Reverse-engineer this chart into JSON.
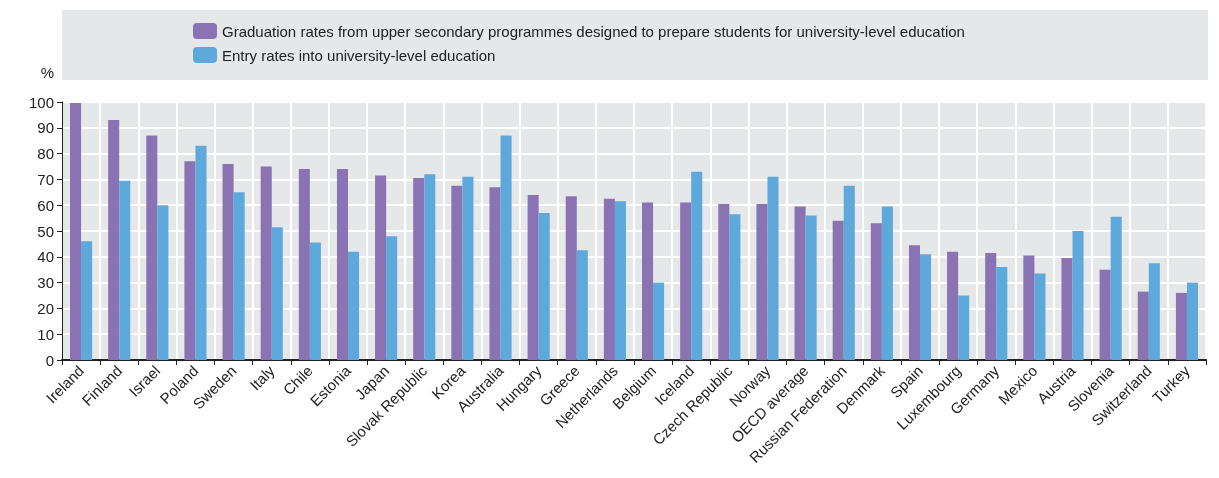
{
  "chart_data": {
    "type": "bar",
    "ylabel": "%",
    "categories": [
      "Ireland",
      "Finland",
      "Israel",
      "Poland",
      "Sweden",
      "Italy",
      "Chile",
      "Estonia",
      "Japan",
      "Slovak Republic",
      "Korea",
      "Australia",
      "Hungary",
      "Greece",
      "Netherlands",
      "Belgium",
      "Iceland",
      "Czech Republic",
      "Norway",
      "OECD average",
      "Russian Federation",
      "Denmark",
      "Spain",
      "Luxembourg",
      "Germany",
      "Mexico",
      "Austria",
      "Slovenia",
      "Switzerland",
      "Turkey"
    ],
    "series": [
      {
        "name": "Graduation rates from upper secondary programmes designed to prepare students for university-level education",
        "color": "#8973b3",
        "values": [
          99.6,
          93,
          87,
          77,
          76,
          75,
          74,
          74,
          71.5,
          70.5,
          67.5,
          67,
          64,
          63.5,
          62.5,
          61,
          61,
          60.5,
          60.5,
          59.5,
          54,
          53,
          44.5,
          42,
          41.5,
          40.5,
          39.5,
          35,
          26.5,
          26
        ]
      },
      {
        "name": "Entry rates into university-level education",
        "color": "#5ea9dc",
        "values": [
          46,
          69.5,
          60,
          83,
          65,
          51.5,
          45.5,
          42,
          48,
          72,
          71,
          87,
          57,
          42.5,
          61.5,
          30,
          73,
          56.5,
          71,
          56,
          67.5,
          59.5,
          41,
          25,
          36,
          33.5,
          50,
          55.5,
          37.5,
          30
        ]
      }
    ],
    "ylim": [
      0,
      100
    ],
    "yticks": [
      0,
      10,
      20,
      30,
      40,
      50,
      60,
      70,
      80,
      90,
      100
    ],
    "grid": true,
    "legend": "top"
  }
}
